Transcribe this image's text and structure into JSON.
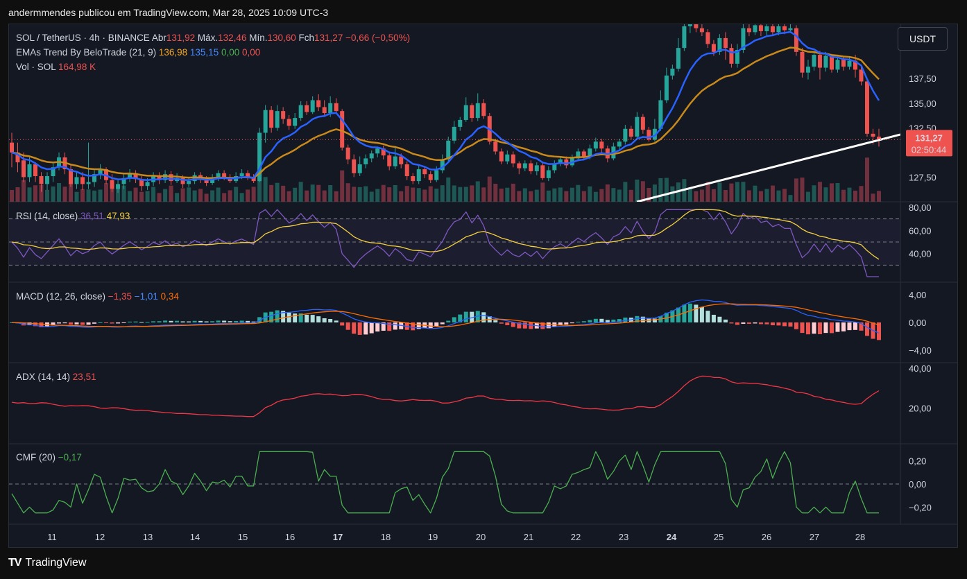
{
  "header": {
    "publish_line": "andermmendes publicou em TradingView.com, Mar 28, 2025 10:09 UTC-3"
  },
  "brand": {
    "label": "TradingView"
  },
  "currency_button": "USDT",
  "legend": {
    "symbol": "SOL / TetherUS · 4h · BINANCE",
    "o_label": "Abr",
    "o_value": "131,92",
    "h_label": "Máx.",
    "h_value": "132,46",
    "l_label": "Mín.",
    "l_value": "130,60",
    "c_label": "Fch",
    "c_value": "131,27",
    "change": "−0,66 (−0,50%)",
    "ema_label": "EMAs Trend By BeloTrade (21, 9)",
    "ema_v1": "136,98",
    "ema_v2": "135,15",
    "ema_v3": "0,00",
    "ema_v4": "0,00",
    "vol_label": "Vol · SOL",
    "vol_value": "164,98 K",
    "rsi_label": "RSI (14, close)",
    "rsi_v1": "36,51",
    "rsi_v2": "47,93",
    "macd_label": "MACD (12, 26, close)",
    "macd_v1": "−1,35",
    "macd_v2": "−1,01",
    "macd_v3": "0,34",
    "adx_label": "ADX (14, 14)",
    "adx_v": "23,51",
    "cmf_label": "CMF (20)",
    "cmf_v": "−0,17"
  },
  "price_badge": {
    "price": "131,27",
    "timer": "02:50:44"
  },
  "colors": {
    "up": "#26a69a",
    "down": "#ef5350",
    "ema_fast": "#2962ff",
    "ema_slow": "#c98a1b",
    "rsi": "#7e57c2",
    "rsi_ma": "#f4d03f",
    "macd": "#2962ff",
    "signal": "#ff6d00",
    "adx": "#f23645",
    "cmf": "#4caf50",
    "trendline": "#ffffff"
  },
  "chart_data": [
    {
      "name": "price",
      "type": "candlestick",
      "x_labels": [
        "11",
        "12",
        "13",
        "14",
        "15",
        "16",
        "17",
        "18",
        "19",
        "20",
        "21",
        "22",
        "23",
        "24",
        "25",
        "26",
        "27",
        "28"
      ],
      "y_ticks": [
        "127,50",
        "132,50",
        "135,00",
        "137,50"
      ],
      "ylim": [
        125,
        143
      ],
      "candles": [
        [
          131,
          130,
          132,
          128.5
        ],
        [
          130,
          129,
          131,
          128
        ],
        [
          129.2,
          127.5,
          130,
          127
        ],
        [
          127.5,
          128.8,
          129.5,
          127
        ],
        [
          128.8,
          127.6,
          129,
          127
        ],
        [
          127.6,
          126.8,
          128,
          126
        ],
        [
          126.8,
          127.6,
          128,
          126.2
        ],
        [
          127.6,
          128.5,
          129,
          127
        ],
        [
          128.5,
          129.5,
          130,
          128.2
        ],
        [
          129.5,
          128.3,
          130,
          127.8
        ],
        [
          128.3,
          126.8,
          128.8,
          126.5
        ],
        [
          126.8,
          127.5,
          128,
          126.3
        ],
        [
          127.5,
          126.8,
          128,
          126.2
        ],
        [
          126.8,
          127,
          131,
          126.3
        ],
        [
          127,
          127.8,
          128.2,
          126.5
        ],
        [
          127.8,
          128.3,
          128.8,
          127.3
        ],
        [
          128.3,
          127.2,
          128.5,
          126.8
        ],
        [
          127.2,
          126.3,
          127.8,
          126
        ],
        [
          126.3,
          126.8,
          127.2,
          125.9
        ],
        [
          126.8,
          127.4,
          127.8,
          126.3
        ],
        [
          127.4,
          127.9,
          128.3,
          127
        ],
        [
          127.9,
          127.3,
          128.2,
          126.9
        ],
        [
          127.3,
          126.6,
          127.6,
          126.1
        ],
        [
          126.6,
          127,
          127.4,
          126.2
        ],
        [
          127,
          127.6,
          128,
          126.6
        ],
        [
          127.6,
          127.2,
          128,
          126.8
        ],
        [
          127.2,
          127.8,
          128.2,
          126.9
        ],
        [
          127.8,
          127.1,
          128.1,
          126.7
        ],
        [
          127.1,
          127.4,
          127.9,
          126.9
        ],
        [
          127.4,
          126.8,
          127.7,
          126.4
        ],
        [
          126.8,
          127.1,
          127.5,
          126.5
        ],
        [
          127.1,
          127.7,
          128,
          126.8
        ],
        [
          127.7,
          127.3,
          128,
          126.9
        ],
        [
          127.3,
          126.9,
          127.6,
          126.6
        ],
        [
          126.9,
          127.4,
          127.8,
          126.7
        ],
        [
          127.4,
          127.9,
          128.2,
          127.1
        ],
        [
          127.9,
          127.5,
          128.2,
          127.2
        ],
        [
          127.5,
          127.1,
          127.8,
          126.9
        ],
        [
          127.1,
          127.6,
          128,
          126.9
        ],
        [
          127.6,
          127.9,
          128.3,
          127.3
        ],
        [
          127.9,
          127.5,
          128.2,
          127.2
        ],
        [
          127.5,
          127.1,
          127.8,
          126.9
        ],
        [
          127.1,
          132,
          132.5,
          127
        ],
        [
          132,
          134.3,
          134.8,
          131
        ],
        [
          134.3,
          132.5,
          134.7,
          132
        ],
        [
          132.5,
          134.2,
          134.8,
          132.2
        ],
        [
          134.2,
          133.4,
          134.6,
          132.9
        ],
        [
          133.4,
          132.7,
          133.8,
          132.3
        ],
        [
          132.7,
          133.5,
          134,
          132.4
        ],
        [
          133.5,
          134.8,
          135.2,
          133.2
        ],
        [
          134.8,
          134.1,
          135.2,
          133.8
        ],
        [
          134.1,
          135.3,
          135.7,
          133.9
        ],
        [
          135.3,
          134.6,
          135.9,
          134.2
        ],
        [
          134.6,
          134,
          135.3,
          133.6
        ],
        [
          134,
          135,
          135.7,
          133.6
        ],
        [
          135,
          134.2,
          135.5,
          133.9
        ],
        [
          134.2,
          130.5,
          134.4,
          130.2
        ],
        [
          130.5,
          129.3,
          130.8,
          128.8
        ],
        [
          129.3,
          127.9,
          129.8,
          127.5
        ],
        [
          127.9,
          128.8,
          129.6,
          127.6
        ],
        [
          128.8,
          129.4,
          129.8,
          128.4
        ],
        [
          129.4,
          129.9,
          130.2,
          129
        ],
        [
          129.9,
          130.4,
          130.6,
          129.5
        ],
        [
          130.4,
          129.7,
          130.7,
          129.3
        ],
        [
          129.7,
          128.6,
          130.1,
          128.2
        ],
        [
          128.6,
          129.6,
          130.5,
          128.3
        ],
        [
          129.6,
          128.8,
          129.9,
          128.4
        ],
        [
          128.8,
          127.6,
          129.1,
          127.2
        ],
        [
          127.6,
          127.1,
          127.9,
          126.8
        ],
        [
          127.1,
          128.3,
          128.7,
          126.8
        ],
        [
          128.3,
          127.8,
          128.6,
          127.4
        ],
        [
          127.8,
          127.2,
          128.1,
          126.9
        ],
        [
          127.2,
          128.2,
          128.6,
          127
        ],
        [
          128.2,
          129.3,
          129.8,
          127.9
        ],
        [
          129.3,
          131.2,
          131.6,
          129
        ],
        [
          131.2,
          132.6,
          133.2,
          130.9
        ],
        [
          132.6,
          133.3,
          133.6,
          132.2
        ],
        [
          133.3,
          134.8,
          135.6,
          133.1
        ],
        [
          134.8,
          133.5,
          135,
          133.1
        ],
        [
          133.5,
          135,
          136,
          133.2
        ],
        [
          135,
          133.7,
          135.4,
          133.4
        ],
        [
          133.7,
          131.1,
          134,
          130.8
        ],
        [
          131.1,
          130.1,
          131.4,
          129.8
        ],
        [
          130.1,
          129.1,
          130.4,
          128.8
        ],
        [
          129.1,
          129.8,
          130.2,
          128.8
        ],
        [
          129.8,
          128.9,
          130.1,
          128.5
        ],
        [
          128.9,
          128.4,
          129.1,
          127.8
        ],
        [
          128.4,
          128.9,
          129.2,
          128.1
        ],
        [
          128.9,
          128.1,
          129.2,
          127.8
        ],
        [
          128.1,
          128.7,
          129,
          127.7
        ],
        [
          128.7,
          127.4,
          129,
          127.2
        ],
        [
          127.4,
          128.2,
          128.6,
          127.1
        ],
        [
          128.2,
          128.9,
          129.2,
          127.9
        ],
        [
          128.9,
          129.3,
          129.6,
          128.6
        ],
        [
          129.3,
          128.7,
          129.6,
          128.4
        ],
        [
          128.7,
          129.4,
          129.8,
          128.5
        ],
        [
          129.4,
          130.1,
          130.4,
          129.1
        ],
        [
          130.1,
          129.6,
          130.3,
          129.2
        ],
        [
          129.6,
          130.4,
          130.8,
          129.3
        ],
        [
          130.4,
          131.1,
          131.5,
          130.1
        ],
        [
          131.1,
          130.4,
          131.4,
          130
        ],
        [
          130.4,
          129.4,
          130.7,
          129
        ],
        [
          129.4,
          130.6,
          131,
          129.2
        ],
        [
          130.6,
          131.1,
          131.4,
          130.3
        ],
        [
          131.1,
          132.4,
          132.8,
          130.8
        ],
        [
          132.4,
          131.6,
          132.7,
          131.3
        ],
        [
          131.6,
          133.6,
          134.1,
          131.4
        ],
        [
          133.6,
          132.3,
          133.9,
          131.9
        ],
        [
          132.3,
          131.3,
          132.6,
          131.1
        ],
        [
          131.3,
          132.4,
          133.4,
          131.1
        ],
        [
          132.4,
          135.3,
          136.3,
          132.2
        ],
        [
          135.3,
          137.8,
          138.6,
          135
        ],
        [
          137.8,
          138.5,
          138.9,
          137.4
        ],
        [
          138.5,
          140.6,
          141.6,
          138.2
        ],
        [
          140.6,
          142.8,
          143.5,
          140.3
        ],
        [
          142.8,
          143.2,
          143.8,
          142.1
        ],
        [
          143.2,
          142.6,
          143.6,
          142.2
        ],
        [
          142.6,
          142.2,
          143.1,
          141.8
        ],
        [
          142.2,
          141,
          142.5,
          140.6
        ],
        [
          141,
          140.2,
          141.4,
          139.8
        ],
        [
          140.2,
          141.6,
          142,
          139.9
        ],
        [
          141.6,
          140.6,
          142.2,
          139.4
        ],
        [
          140.6,
          139,
          141,
          138.6
        ],
        [
          139,
          140.4,
          141,
          138.6
        ],
        [
          140.4,
          142.6,
          143.1,
          140.1
        ],
        [
          142.6,
          142.2,
          143,
          141.8
        ],
        [
          142.2,
          142.9,
          143.3,
          141.9
        ],
        [
          142.9,
          142.3,
          143.3,
          141.8
        ],
        [
          142.3,
          142.8,
          143.4,
          141.9
        ],
        [
          142.8,
          142.2,
          143.2,
          141.8
        ],
        [
          142.2,
          142.8,
          143.3,
          141.9
        ],
        [
          142.8,
          142.4,
          143.2,
          142
        ],
        [
          142.4,
          142.6,
          143.1,
          142.1
        ],
        [
          142.6,
          140.2,
          142.9,
          139.8
        ],
        [
          140.2,
          138.1,
          140.6,
          137.6
        ],
        [
          138.1,
          138.7,
          139.4,
          137.4
        ],
        [
          138.7,
          139.9,
          140.2,
          138.3
        ],
        [
          139.9,
          138.6,
          140.3,
          137.4
        ],
        [
          138.6,
          139.8,
          140.2,
          138.2
        ],
        [
          139.8,
          138.4,
          140,
          138.1
        ],
        [
          138.4,
          139.4,
          139.7,
          138.1
        ],
        [
          139.4,
          138.7,
          139.8,
          138.3
        ],
        [
          138.7,
          139.3,
          139.7,
          138.4
        ],
        [
          139.3,
          138.4,
          139.9,
          137.6
        ],
        [
          138.4,
          137.2,
          138.8,
          136.8
        ],
        [
          137.2,
          131.9,
          137.6,
          131.6
        ],
        [
          131.9,
          131.6,
          132.4,
          130.8
        ],
        [
          131.6,
          131.3,
          132.4,
          130.6
        ]
      ]
    },
    {
      "name": "volume",
      "type": "bar",
      "note": "volume histogram at base of price pane"
    },
    {
      "name": "ema",
      "type": "line",
      "series": [
        {
          "name": "21"
        },
        {
          "name": "9"
        }
      ]
    },
    {
      "name": "rsi",
      "type": "line",
      "y_ticks": [
        "40,00",
        "60,00",
        "80,00"
      ],
      "ylim": [
        20,
        80
      ]
    },
    {
      "name": "macd",
      "type": "line+histogram",
      "y_ticks": [
        "−4,00",
        "0,00",
        "4,00"
      ],
      "ylim": [
        -5,
        5
      ]
    },
    {
      "name": "adx",
      "type": "line",
      "y_ticks": [
        "20,00",
        "40,00"
      ],
      "ylim": [
        5,
        40
      ]
    },
    {
      "name": "cmf",
      "type": "line",
      "y_ticks": [
        "−0,20",
        "0,00",
        "0,20"
      ],
      "ylim": [
        -0.3,
        0.3
      ]
    }
  ]
}
